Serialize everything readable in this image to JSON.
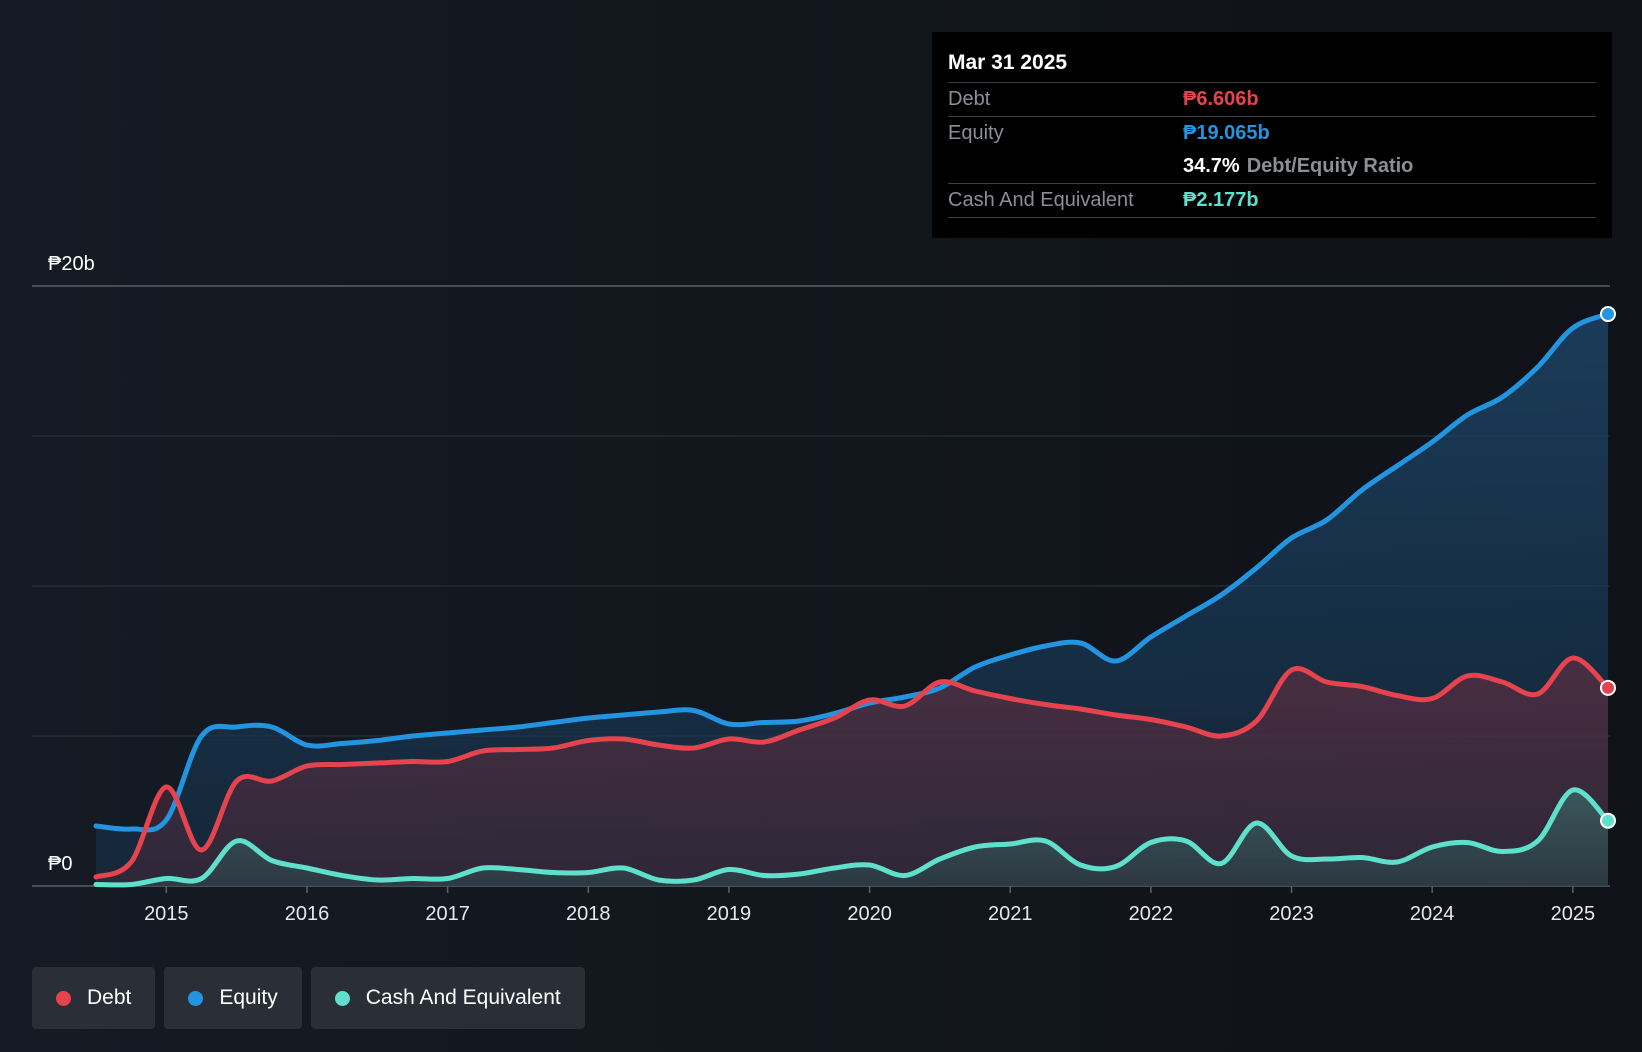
{
  "tooltip": {
    "date": "Mar 31 2025",
    "debt_label": "Debt",
    "debt_value": "₱6.606b",
    "equity_label": "Equity",
    "equity_value": "₱19.065b",
    "ratio_value": "34.7%",
    "ratio_label": "Debt/Equity Ratio",
    "cash_label": "Cash And Equivalent",
    "cash_value": "₱2.177b"
  },
  "legend": [
    {
      "label": "Debt",
      "color": "#e5434e"
    },
    {
      "label": "Equity",
      "color": "#2394df"
    },
    {
      "label": "Cash And Equivalent",
      "color": "#5fe0cc"
    }
  ],
  "chart_data": {
    "type": "area",
    "y_tick_labels": [
      "₱20b",
      "₱0"
    ],
    "ylim": [
      0,
      20
    ],
    "xlim": [
      2014.5,
      2025.25
    ],
    "x_ticks": [
      {
        "value": 2015,
        "label": "2015"
      },
      {
        "value": 2016,
        "label": "2016"
      },
      {
        "value": 2017,
        "label": "2017"
      },
      {
        "value": 2018,
        "label": "2018"
      },
      {
        "value": 2019,
        "label": "2019"
      },
      {
        "value": 2020,
        "label": "2020"
      },
      {
        "value": 2021,
        "label": "2021"
      },
      {
        "value": 2022,
        "label": "2022"
      },
      {
        "value": 2023,
        "label": "2023"
      },
      {
        "value": 2024,
        "label": "2024"
      },
      {
        "value": 2025,
        "label": "2025"
      }
    ],
    "gridlines": [
      0,
      5,
      10,
      15,
      20
    ],
    "series": [
      {
        "name": "Equity",
        "color": "#2394df",
        "points": [
          [
            2014.5,
            2.0
          ],
          [
            2014.75,
            1.9
          ],
          [
            2015.0,
            2.2
          ],
          [
            2015.25,
            5.0
          ],
          [
            2015.5,
            5.3
          ],
          [
            2015.75,
            5.3
          ],
          [
            2016.0,
            4.7
          ],
          [
            2016.25,
            4.75
          ],
          [
            2016.5,
            4.85
          ],
          [
            2016.75,
            5.0
          ],
          [
            2017.0,
            5.1
          ],
          [
            2017.25,
            5.2
          ],
          [
            2017.5,
            5.3
          ],
          [
            2017.75,
            5.45
          ],
          [
            2018.0,
            5.6
          ],
          [
            2018.25,
            5.7
          ],
          [
            2018.5,
            5.8
          ],
          [
            2018.75,
            5.85
          ],
          [
            2019.0,
            5.4
          ],
          [
            2019.25,
            5.45
          ],
          [
            2019.5,
            5.5
          ],
          [
            2019.75,
            5.75
          ],
          [
            2020.0,
            6.1
          ],
          [
            2020.25,
            6.3
          ],
          [
            2020.5,
            6.6
          ],
          [
            2020.75,
            7.3
          ],
          [
            2021.0,
            7.7
          ],
          [
            2021.25,
            8.0
          ],
          [
            2021.5,
            8.1
          ],
          [
            2021.75,
            7.5
          ],
          [
            2022.0,
            8.3
          ],
          [
            2022.25,
            9.0
          ],
          [
            2022.5,
            9.7
          ],
          [
            2022.75,
            10.6
          ],
          [
            2023.0,
            11.6
          ],
          [
            2023.25,
            12.2
          ],
          [
            2023.5,
            13.2
          ],
          [
            2023.75,
            14.0
          ],
          [
            2024.0,
            14.8
          ],
          [
            2024.25,
            15.7
          ],
          [
            2024.5,
            16.3
          ],
          [
            2024.75,
            17.3
          ],
          [
            2025.0,
            18.6
          ],
          [
            2025.25,
            19.065
          ]
        ]
      },
      {
        "name": "Debt",
        "color": "#e5434e",
        "points": [
          [
            2014.5,
            0.3
          ],
          [
            2014.75,
            0.8
          ],
          [
            2015.0,
            3.3
          ],
          [
            2015.25,
            1.2
          ],
          [
            2015.5,
            3.5
          ],
          [
            2015.75,
            3.5
          ],
          [
            2016.0,
            4.0
          ],
          [
            2016.25,
            4.05
          ],
          [
            2016.5,
            4.1
          ],
          [
            2016.75,
            4.15
          ],
          [
            2017.0,
            4.15
          ],
          [
            2017.25,
            4.5
          ],
          [
            2017.5,
            4.55
          ],
          [
            2017.75,
            4.6
          ],
          [
            2018.0,
            4.85
          ],
          [
            2018.25,
            4.9
          ],
          [
            2018.5,
            4.7
          ],
          [
            2018.75,
            4.6
          ],
          [
            2019.0,
            4.9
          ],
          [
            2019.25,
            4.8
          ],
          [
            2019.5,
            5.2
          ],
          [
            2019.75,
            5.6
          ],
          [
            2020.0,
            6.2
          ],
          [
            2020.25,
            6.0
          ],
          [
            2020.5,
            6.8
          ],
          [
            2020.75,
            6.5
          ],
          [
            2021.0,
            6.25
          ],
          [
            2021.25,
            6.05
          ],
          [
            2021.5,
            5.9
          ],
          [
            2021.75,
            5.7
          ],
          [
            2022.0,
            5.55
          ],
          [
            2022.25,
            5.3
          ],
          [
            2022.5,
            5.0
          ],
          [
            2022.75,
            5.5
          ],
          [
            2023.0,
            7.2
          ],
          [
            2023.25,
            6.8
          ],
          [
            2023.5,
            6.65
          ],
          [
            2023.75,
            6.35
          ],
          [
            2024.0,
            6.25
          ],
          [
            2024.25,
            7.0
          ],
          [
            2024.5,
            6.8
          ],
          [
            2024.75,
            6.4
          ],
          [
            2025.0,
            7.6
          ],
          [
            2025.25,
            6.606
          ]
        ]
      },
      {
        "name": "Cash And Equivalent",
        "color": "#5fe0cc",
        "points": [
          [
            2014.5,
            0.05
          ],
          [
            2014.75,
            0.05
          ],
          [
            2015.0,
            0.25
          ],
          [
            2015.25,
            0.25
          ],
          [
            2015.5,
            1.5
          ],
          [
            2015.75,
            0.85
          ],
          [
            2016.0,
            0.6
          ],
          [
            2016.25,
            0.35
          ],
          [
            2016.5,
            0.2
          ],
          [
            2016.75,
            0.25
          ],
          [
            2017.0,
            0.25
          ],
          [
            2017.25,
            0.6
          ],
          [
            2017.5,
            0.55
          ],
          [
            2017.75,
            0.45
          ],
          [
            2018.0,
            0.45
          ],
          [
            2018.25,
            0.6
          ],
          [
            2018.5,
            0.2
          ],
          [
            2018.75,
            0.2
          ],
          [
            2019.0,
            0.55
          ],
          [
            2019.25,
            0.35
          ],
          [
            2019.5,
            0.4
          ],
          [
            2019.75,
            0.6
          ],
          [
            2020.0,
            0.7
          ],
          [
            2020.25,
            0.35
          ],
          [
            2020.5,
            0.9
          ],
          [
            2020.75,
            1.3
          ],
          [
            2021.0,
            1.4
          ],
          [
            2021.25,
            1.5
          ],
          [
            2021.5,
            0.7
          ],
          [
            2021.75,
            0.65
          ],
          [
            2022.0,
            1.45
          ],
          [
            2022.25,
            1.5
          ],
          [
            2022.5,
            0.75
          ],
          [
            2022.75,
            2.1
          ],
          [
            2023.0,
            1.0
          ],
          [
            2023.25,
            0.9
          ],
          [
            2023.5,
            0.95
          ],
          [
            2023.75,
            0.8
          ],
          [
            2024.0,
            1.3
          ],
          [
            2024.25,
            1.45
          ],
          [
            2024.5,
            1.15
          ],
          [
            2024.75,
            1.5
          ],
          [
            2025.0,
            3.2
          ],
          [
            2025.25,
            2.177
          ]
        ]
      }
    ]
  }
}
